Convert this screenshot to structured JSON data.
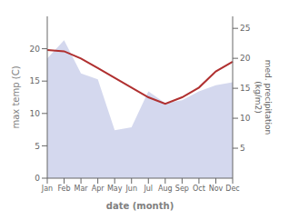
{
  "chart_data": {
    "type": "line",
    "categories": [
      "Jan",
      "Feb",
      "Mar",
      "Apr",
      "May",
      "Jun",
      "Jul",
      "Aug",
      "Sep",
      "Oct",
      "Nov",
      "Dec"
    ],
    "xlabel": "date (month)",
    "ylabel": "max temp (C)",
    "y2label": "med. precipitation\n(kg/m2)",
    "ylim": [
      0,
      25
    ],
    "yticks": [
      0,
      5,
      10,
      15,
      20
    ],
    "y2lim": [
      0,
      27
    ],
    "y2ticks": [
      5,
      10,
      15,
      20,
      25
    ],
    "grid": false,
    "series": [
      {
        "type": "area",
        "axis": "y2",
        "color": "#b0b8e0",
        "values": [
          20.0,
          23.0,
          17.5,
          16.5,
          8.0,
          8.5,
          14.5,
          12.5,
          13.0,
          14.5,
          15.5,
          16.0
        ]
      },
      {
        "type": "line",
        "color": "#b03030",
        "values": [
          19.8,
          19.6,
          18.5,
          17.0,
          15.5,
          14.0,
          12.5,
          11.5,
          12.5,
          14.0,
          16.5,
          18.0
        ]
      }
    ]
  }
}
